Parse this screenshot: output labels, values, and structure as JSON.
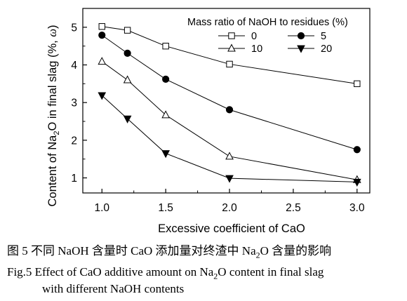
{
  "chart_data": {
    "type": "line",
    "ylabel_main": "Content of Na",
    "ylabel_sub": "2",
    "ylabel_rest": "O in final slag  (%, ",
    "ylabel_omega": "ω",
    "ylabel_end": ")",
    "xlabel": "Excessive coefficient of CaO",
    "xlim": [
      0.85,
      3.1
    ],
    "ylim": [
      0.6,
      5.5
    ],
    "xticks": [
      1.0,
      1.5,
      2.0,
      2.5,
      3.0
    ],
    "xtick_labels": [
      "1.0",
      "1.5",
      "2.0",
      "2.5",
      "3.0"
    ],
    "yticks": [
      1,
      2,
      3,
      4,
      5
    ],
    "ytick_labels": [
      "1",
      "2",
      "3",
      "4",
      "5"
    ],
    "legend_title": "Mass ratio of NaOH  to residues (%)",
    "legend_position": "top-right",
    "x": [
      1.0,
      1.2,
      1.5,
      2.0,
      3.0
    ],
    "series": [
      {
        "name": "0",
        "marker": "open-square",
        "values": [
          5.02,
          4.92,
          4.5,
          4.02,
          3.5
        ]
      },
      {
        "name": "5",
        "marker": "filled-circle",
        "values": [
          4.79,
          4.31,
          3.62,
          2.81,
          1.75
        ]
      },
      {
        "name": "10",
        "marker": "open-triangle",
        "values": [
          4.09,
          3.6,
          2.67,
          1.57,
          0.95
        ]
      },
      {
        "name": "20",
        "marker": "filled-triangle-down",
        "values": [
          3.19,
          2.57,
          1.65,
          0.99,
          0.89
        ]
      }
    ]
  },
  "caption": {
    "cn_prefix": "图 5  不同 NaOH 含量时 CaO 添加量对终渣中 Na",
    "cn_sub": "2",
    "cn_suffix": "O 含量的影响",
    "en_line1_prefix": "Fig.5 Effect of CaO additive amount on Na",
    "en_line1_sub": "2",
    "en_line1_suffix": "O content in final slag",
    "en_line2": "with different NaOH contents"
  }
}
